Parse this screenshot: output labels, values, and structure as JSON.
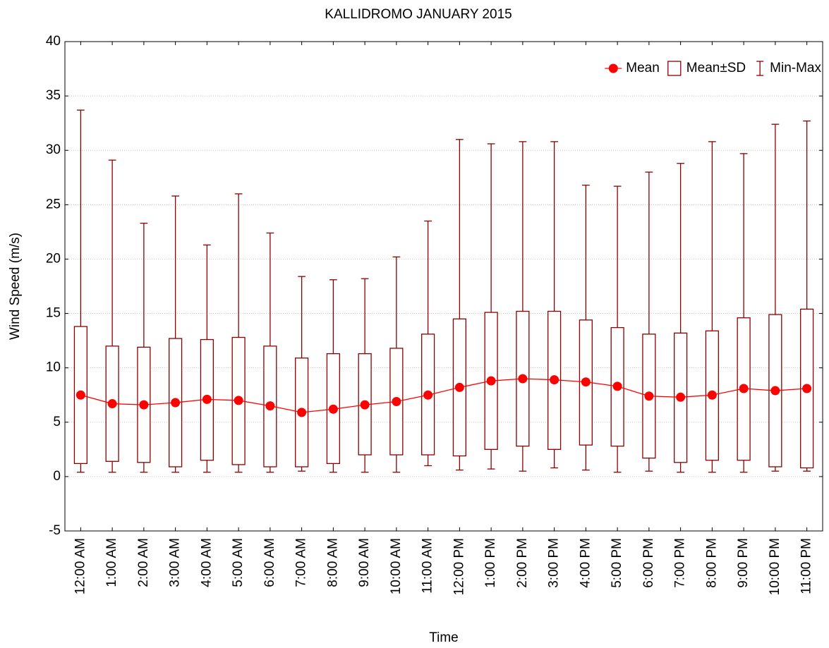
{
  "chart_data": {
    "type": "box",
    "title": "KALLIDROMO JANUARY 2015",
    "x_label": "Time",
    "y_label": "Wind Speed (m/s)",
    "categories": [
      "12:00 AM",
      "1:00 AM",
      "2:00 AM",
      "3:00 AM",
      "4:00 AM",
      "5:00 AM",
      "6:00 AM",
      "7:00 AM",
      "8:00 AM",
      "9:00 AM",
      "10:00 AM",
      "11:00 AM",
      "12:00 PM",
      "1:00 PM",
      "2:00 PM",
      "3:00 PM",
      "4:00 PM",
      "5:00 PM",
      "6:00 PM",
      "7:00 PM",
      "8:00 PM",
      "9:00 PM",
      "10:00 PM",
      "11:00 PM"
    ],
    "series": [
      {
        "name": "Mean",
        "color": "#ff0000",
        "values": [
          7.5,
          6.7,
          6.6,
          6.8,
          7.1,
          7.0,
          6.5,
          5.9,
          6.2,
          6.6,
          6.9,
          7.5,
          8.2,
          8.8,
          9.0,
          8.9,
          8.7,
          8.3,
          7.4,
          7.3,
          7.5,
          8.1,
          7.9,
          8.1
        ]
      },
      {
        "name": "Mean±SD",
        "color": "#8b0000",
        "values": [
          [
            1.2,
            13.8
          ],
          [
            1.4,
            12.0
          ],
          [
            1.3,
            11.9
          ],
          [
            0.9,
            12.7
          ],
          [
            1.5,
            12.6
          ],
          [
            1.1,
            12.8
          ],
          [
            0.9,
            12.0
          ],
          [
            0.9,
            10.9
          ],
          [
            1.2,
            11.3
          ],
          [
            2.0,
            11.3
          ],
          [
            2.0,
            11.8
          ],
          [
            2.0,
            13.1
          ],
          [
            1.9,
            14.5
          ],
          [
            2.5,
            15.1
          ],
          [
            2.8,
            15.2
          ],
          [
            2.5,
            15.2
          ],
          [
            2.9,
            14.4
          ],
          [
            2.8,
            13.7
          ],
          [
            1.7,
            13.1
          ],
          [
            1.3,
            13.2
          ],
          [
            1.5,
            13.4
          ],
          [
            1.5,
            14.6
          ],
          [
            0.9,
            14.9
          ],
          [
            0.8,
            15.4
          ]
        ]
      },
      {
        "name": "Min-Max",
        "color": "#8b0000",
        "values": [
          [
            0.4,
            33.7
          ],
          [
            0.4,
            29.1
          ],
          [
            0.4,
            23.3
          ],
          [
            0.4,
            25.8
          ],
          [
            0.4,
            21.3
          ],
          [
            0.4,
            26.0
          ],
          [
            0.4,
            22.4
          ],
          [
            0.5,
            18.4
          ],
          [
            0.4,
            18.1
          ],
          [
            0.4,
            18.2
          ],
          [
            0.4,
            20.2
          ],
          [
            1.0,
            23.5
          ],
          [
            0.6,
            31.0
          ],
          [
            0.7,
            30.6
          ],
          [
            0.5,
            30.8
          ],
          [
            0.8,
            30.8
          ],
          [
            0.6,
            26.8
          ],
          [
            0.4,
            26.7
          ],
          [
            0.5,
            28.0
          ],
          [
            0.4,
            28.8
          ],
          [
            0.4,
            30.8
          ],
          [
            0.4,
            29.7
          ],
          [
            0.5,
            32.4
          ],
          [
            0.5,
            32.7
          ]
        ]
      }
    ],
    "ylim": [
      -5,
      40
    ],
    "yticks": [
      -5,
      0,
      5,
      10,
      15,
      20,
      25,
      30,
      35,
      40
    ],
    "grid": true,
    "legend": "upper right"
  }
}
